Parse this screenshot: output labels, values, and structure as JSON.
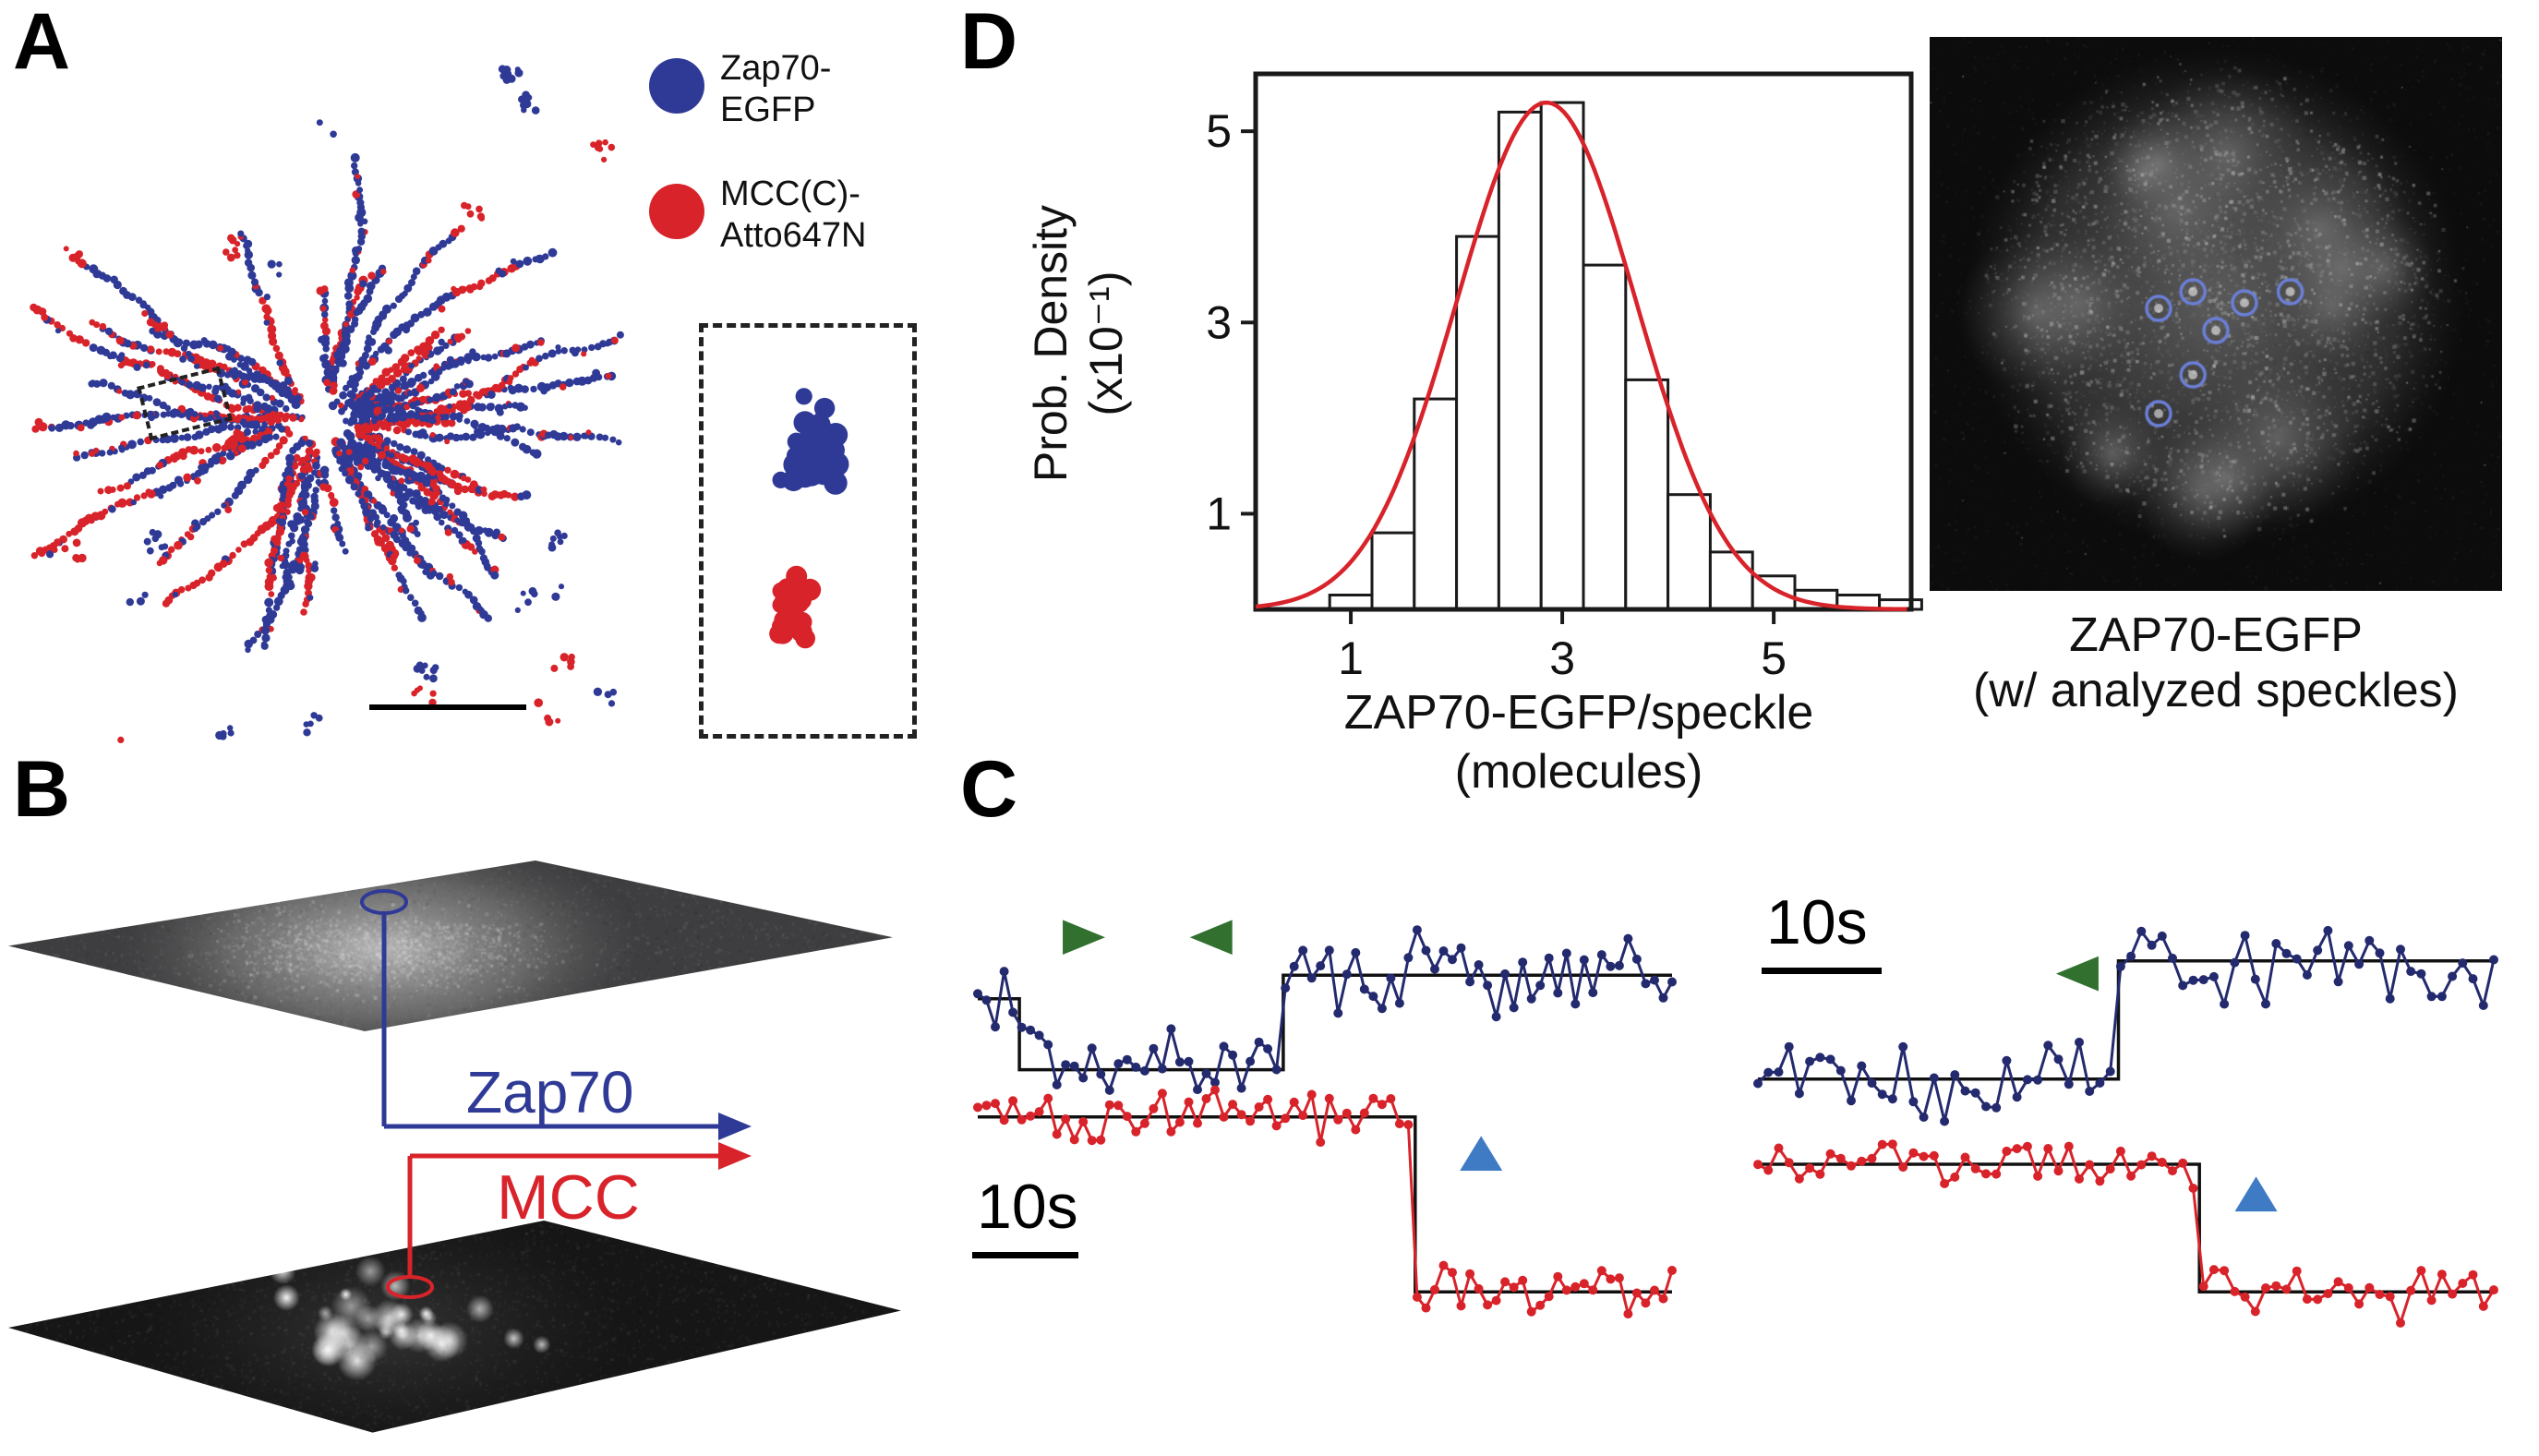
{
  "panels": {
    "A": {
      "label": "A",
      "legend": [
        {
          "name": "Zap70-EGFP",
          "color": "#2f3a96",
          "line1": "Zap70-",
          "line2": "EGFP"
        },
        {
          "name": "MCC(C)-Atto647N",
          "color": "#d8232a",
          "line1": "MCC(C)-",
          "line2": "Atto647N"
        }
      ]
    },
    "B": {
      "label": "B",
      "top_arrow_label": "Zap70",
      "bottom_arrow_label": "MCC",
      "zap70_color": "#2f3a96",
      "mcc_color": "#d8232a"
    },
    "C": {
      "label": "C"
    },
    "D": {
      "label": "D",
      "image_caption_line1": "ZAP70-EGFP",
      "image_caption_line2": "(w/ analyzed speckles)",
      "speckle_circle_color": "#6b7fd7",
      "analyzed_speckles": [
        [
          0.4,
          0.49
        ],
        [
          0.46,
          0.46
        ],
        [
          0.5,
          0.53
        ],
        [
          0.55,
          0.48
        ],
        [
          0.63,
          0.46
        ],
        [
          0.46,
          0.61
        ],
        [
          0.4,
          0.68
        ]
      ]
    }
  },
  "chart_data": [
    {
      "id": "panel_a_localization_map",
      "type": "scatter",
      "description": "Two-color single-molecule localization map radiating from cell center; dashed ROI shown enlarged in dashed inset (blue cluster above red cluster)",
      "series": [
        {
          "name": "Zap70-EGFP",
          "color": "#2f3a96"
        },
        {
          "name": "MCC(C)-Atto647N",
          "color": "#d8232a"
        }
      ]
    },
    {
      "id": "panel_d_histogram",
      "type": "bar",
      "xlabel": "ZAP70-EGFP/speckle (molecules)",
      "xlabel_lines": [
        "ZAP70-EGFP/speckle",
        "(molecules)"
      ],
      "ylabel": "Prob. Density (x10⁻¹)",
      "ylabel_lines": [
        "Prob. Density",
        "(x10⁻¹)"
      ],
      "bin_start": 0.8,
      "bin_width": 0.4,
      "values": [
        0.15,
        0.8,
        2.2,
        3.9,
        5.2,
        5.3,
        3.6,
        2.4,
        1.2,
        0.6,
        0.35,
        0.2,
        0.15,
        0.1
      ],
      "xlim": [
        0.1,
        6.3
      ],
      "ylim": [
        0,
        5.6
      ],
      "xticks": [
        1,
        3,
        5
      ],
      "yticks": [
        1,
        3,
        5
      ],
      "bar_fill": "#ffffff",
      "bar_stroke": "#1a1a1a",
      "fit": {
        "type": "gaussian",
        "amplitude": 5.3,
        "mean": 2.85,
        "sigma": 0.85,
        "color": "#d8232a"
      }
    },
    {
      "id": "panel_c_trace_left",
      "type": "line",
      "scalebar_label": "10s",
      "series": [
        {
          "name": "ZAP70-EGFP",
          "color": "#232a6e",
          "noise": 0.06,
          "n": 80,
          "steps": [
            {
              "x0": 0,
              "x1": 0.06,
              "level": 0.23
            },
            {
              "x0": 0.06,
              "x1": 0.44,
              "level": 0.38
            },
            {
              "x0": 0.44,
              "x1": 1,
              "level": 0.18
            }
          ]
        },
        {
          "name": "MCC",
          "color": "#d8232a",
          "noise": 0.035,
          "n": 80,
          "steps": [
            {
              "x0": 0,
              "x1": 0.63,
              "level": 0.48
            },
            {
              "x0": 0.63,
              "x1": 1,
              "level": 0.85
            }
          ]
        }
      ],
      "markers": [
        {
          "shape": "triangle-right",
          "color": "#31702f",
          "x": 0.153,
          "y": 0.1
        },
        {
          "shape": "triangle-left",
          "color": "#31702f",
          "x": 0.336,
          "y": 0.1
        },
        {
          "shape": "triangle-up",
          "color": "#3e7bc4",
          "x": 0.725,
          "y": 0.557
        }
      ]
    },
    {
      "id": "panel_c_trace_right",
      "type": "line",
      "scalebar_label": "10s",
      "series": [
        {
          "name": "ZAP70-EGFP",
          "color": "#232a6e",
          "noise": 0.055,
          "n": 72,
          "steps": [
            {
              "x0": 0,
              "x1": 0.49,
              "level": 0.4
            },
            {
              "x0": 0.49,
              "x1": 1,
              "level": 0.15
            }
          ]
        },
        {
          "name": "MCC",
          "color": "#d8232a",
          "noise": 0.03,
          "n": 72,
          "steps": [
            {
              "x0": 0,
              "x1": 0.6,
              "level": 0.58
            },
            {
              "x0": 0.6,
              "x1": 1,
              "level": 0.85
            }
          ]
        }
      ],
      "markers": [
        {
          "shape": "triangle-left",
          "color": "#31702f",
          "x": 0.434,
          "y": 0.177
        },
        {
          "shape": "triangle-up",
          "color": "#3e7bc4",
          "x": 0.677,
          "y": 0.643
        }
      ]
    }
  ]
}
